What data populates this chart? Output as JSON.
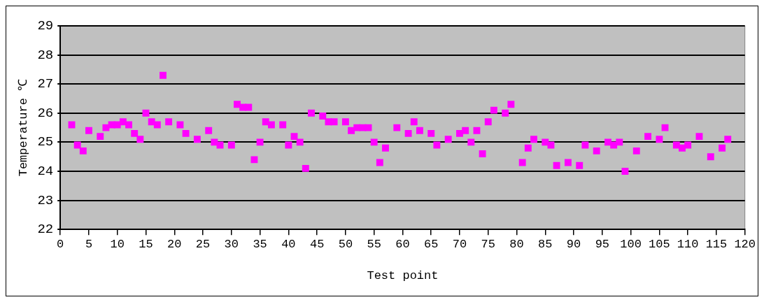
{
  "chart_data": {
    "type": "scatter",
    "xlabel": "Test point",
    "ylabel": "Temperature ℃",
    "x": [
      2,
      3,
      4,
      5,
      7,
      8,
      9,
      10,
      11,
      12,
      13,
      14,
      15,
      16,
      17,
      18,
      19,
      21,
      22,
      24,
      26,
      27,
      28,
      30,
      31,
      32,
      33,
      34,
      35,
      36,
      37,
      39,
      40,
      41,
      42,
      43,
      44,
      46,
      47,
      48,
      50,
      51,
      52,
      53,
      54,
      55,
      56,
      57,
      59,
      61,
      62,
      63,
      65,
      66,
      68,
      70,
      71,
      72,
      73,
      74,
      75,
      76,
      78,
      79,
      81,
      82,
      83,
      85,
      86,
      87,
      89,
      91,
      92,
      94,
      96,
      97,
      98,
      99,
      101,
      103,
      105,
      106,
      108,
      109,
      110,
      112,
      114,
      116,
      117
    ],
    "series": [
      {
        "color": "#ff00ff",
        "values": [
          25.6,
          24.9,
          24.7,
          25.4,
          25.2,
          25.5,
          25.6,
          25.6,
          25.7,
          25.6,
          25.3,
          25.1,
          26.0,
          25.7,
          25.6,
          27.3,
          25.7,
          25.6,
          25.3,
          25.1,
          25.4,
          25.0,
          24.9,
          24.9,
          26.3,
          26.2,
          26.2,
          24.4,
          25.0,
          25.7,
          25.6,
          25.6,
          24.9,
          25.2,
          25.0,
          24.1,
          26.0,
          25.9,
          25.7,
          25.7,
          25.7,
          25.4,
          25.5,
          25.5,
          25.5,
          25.0,
          24.3,
          24.8,
          25.5,
          25.3,
          25.7,
          25.4,
          25.3,
          24.9,
          25.1,
          25.3,
          25.4,
          25.0,
          25.4,
          24.6,
          25.7,
          26.1,
          26.0,
          26.3,
          24.3,
          24.8,
          25.1,
          25.0,
          24.9,
          24.2,
          24.3,
          24.2,
          24.9,
          24.7,
          25.0,
          24.9,
          25.0,
          24.0,
          24.7,
          25.2,
          25.1,
          25.5,
          24.9,
          24.8,
          24.9,
          25.2,
          24.5,
          24.8,
          25.1
        ]
      }
    ],
    "xlim": [
      0,
      120
    ],
    "xticks": [
      0,
      5,
      10,
      15,
      20,
      25,
      30,
      35,
      40,
      45,
      50,
      55,
      60,
      65,
      70,
      75,
      80,
      85,
      90,
      95,
      100,
      105,
      110,
      115,
      120
    ],
    "ylim": [
      22,
      29
    ],
    "yticks": [
      22,
      23,
      24,
      25,
      26,
      27,
      28,
      29
    ],
    "grid": "y",
    "legend": false,
    "marker": "square"
  }
}
